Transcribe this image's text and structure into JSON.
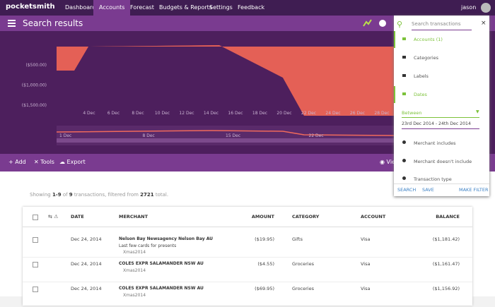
{
  "nav": {
    "logo": "pocketsmith",
    "items": [
      "Dashboard",
      "Accounts",
      "Forecast",
      "Budgets & Reports",
      "Settings",
      "Feedback"
    ],
    "user": "jason"
  },
  "header": {
    "title": "Search results"
  },
  "chart": {
    "yticks": [
      "($500.00)",
      "($1,000.00)",
      "($1,500.00)"
    ],
    "xticks": [
      "4 Dec",
      "6 Dec",
      "8 Dec",
      "10 Dec",
      "12 Dec",
      "14 Dec",
      "16 Dec",
      "18 Dec",
      "20 Dec",
      "22 Dec",
      "24 Dec",
      "26 Dec",
      "28 Dec"
    ],
    "navigator_ticks": [
      "1 Dec",
      "8 Dec",
      "15 Dec",
      "22 Dec"
    ]
  },
  "toolbar": {
    "items": [
      "Add",
      "Tools",
      "Export"
    ],
    "view": "View"
  },
  "summary": [
    "Showing ",
    "1-9",
    " of ",
    "9",
    " transactions, filtered from ",
    "2721",
    " total."
  ],
  "table": {
    "columns": [
      "DATE",
      "MERCHANT",
      "AMOUNT",
      "CATEGORY",
      "ACCOUNT",
      "BALANCE"
    ],
    "rows": [
      {
        "date": "Dec 24, 2014",
        "merchant": "Nelson Bay Newsagency Nelson Bay AU",
        "note": "Last few cards for presents",
        "label": "Xmas2014",
        "amount": "($19.95)",
        "category": "Gifts",
        "account": "Visa",
        "balance": "($1,181.42)"
      },
      {
        "date": "Dec 24, 2014",
        "merchant": "COLES EXPR SALAMANDER NSW AU",
        "label": "Xmas2014",
        "amount": "($4.55)",
        "category": "Groceries",
        "account": "Visa",
        "balance": "($1,161.47)"
      },
      {
        "date": "Dec 24, 2014",
        "merchant": "COLES EXPR SALAMANDER NSW AU",
        "label": "Xmas2014",
        "amount": "($69.95)",
        "category": "Groceries",
        "account": "Visa",
        "balance": "($1,156.92)"
      }
    ]
  },
  "filter": {
    "placeholder": "Search transactions",
    "items": [
      "Accounts (1)",
      "Categories",
      "Labels",
      "Dates"
    ],
    "between": "Between",
    "range": "23rd Dec 2014 - 24th Dec 2014",
    "more": [
      "Merchant includes",
      "Merchant doesn't include",
      "Transaction type"
    ],
    "footer": [
      "SEARCH",
      "SAVE",
      "MAKE FILTER"
    ]
  }
}
